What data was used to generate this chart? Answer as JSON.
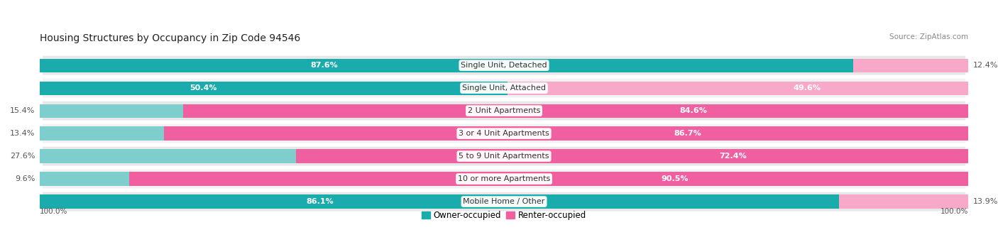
{
  "title": "Housing Structures by Occupancy in Zip Code 94546",
  "source": "Source: ZipAtlas.com",
  "categories": [
    "Single Unit, Detached",
    "Single Unit, Attached",
    "2 Unit Apartments",
    "3 or 4 Unit Apartments",
    "5 to 9 Unit Apartments",
    "10 or more Apartments",
    "Mobile Home / Other"
  ],
  "owner_pct": [
    87.6,
    50.4,
    15.4,
    13.4,
    27.6,
    9.6,
    86.1
  ],
  "renter_pct": [
    12.4,
    49.6,
    84.6,
    86.7,
    72.4,
    90.5,
    13.9
  ],
  "owner_color_dark": "#1aacac",
  "owner_color_light": "#7ecece",
  "renter_color_dark": "#f060a0",
  "renter_color_light": "#f8a8c8",
  "row_bg_dark": "#e8e8e8",
  "row_bg_light": "#f2f2f2",
  "title_fontsize": 10,
  "source_fontsize": 7.5,
  "bar_label_fontsize": 8,
  "cat_label_fontsize": 8,
  "axis_label_fontsize": 7.5
}
